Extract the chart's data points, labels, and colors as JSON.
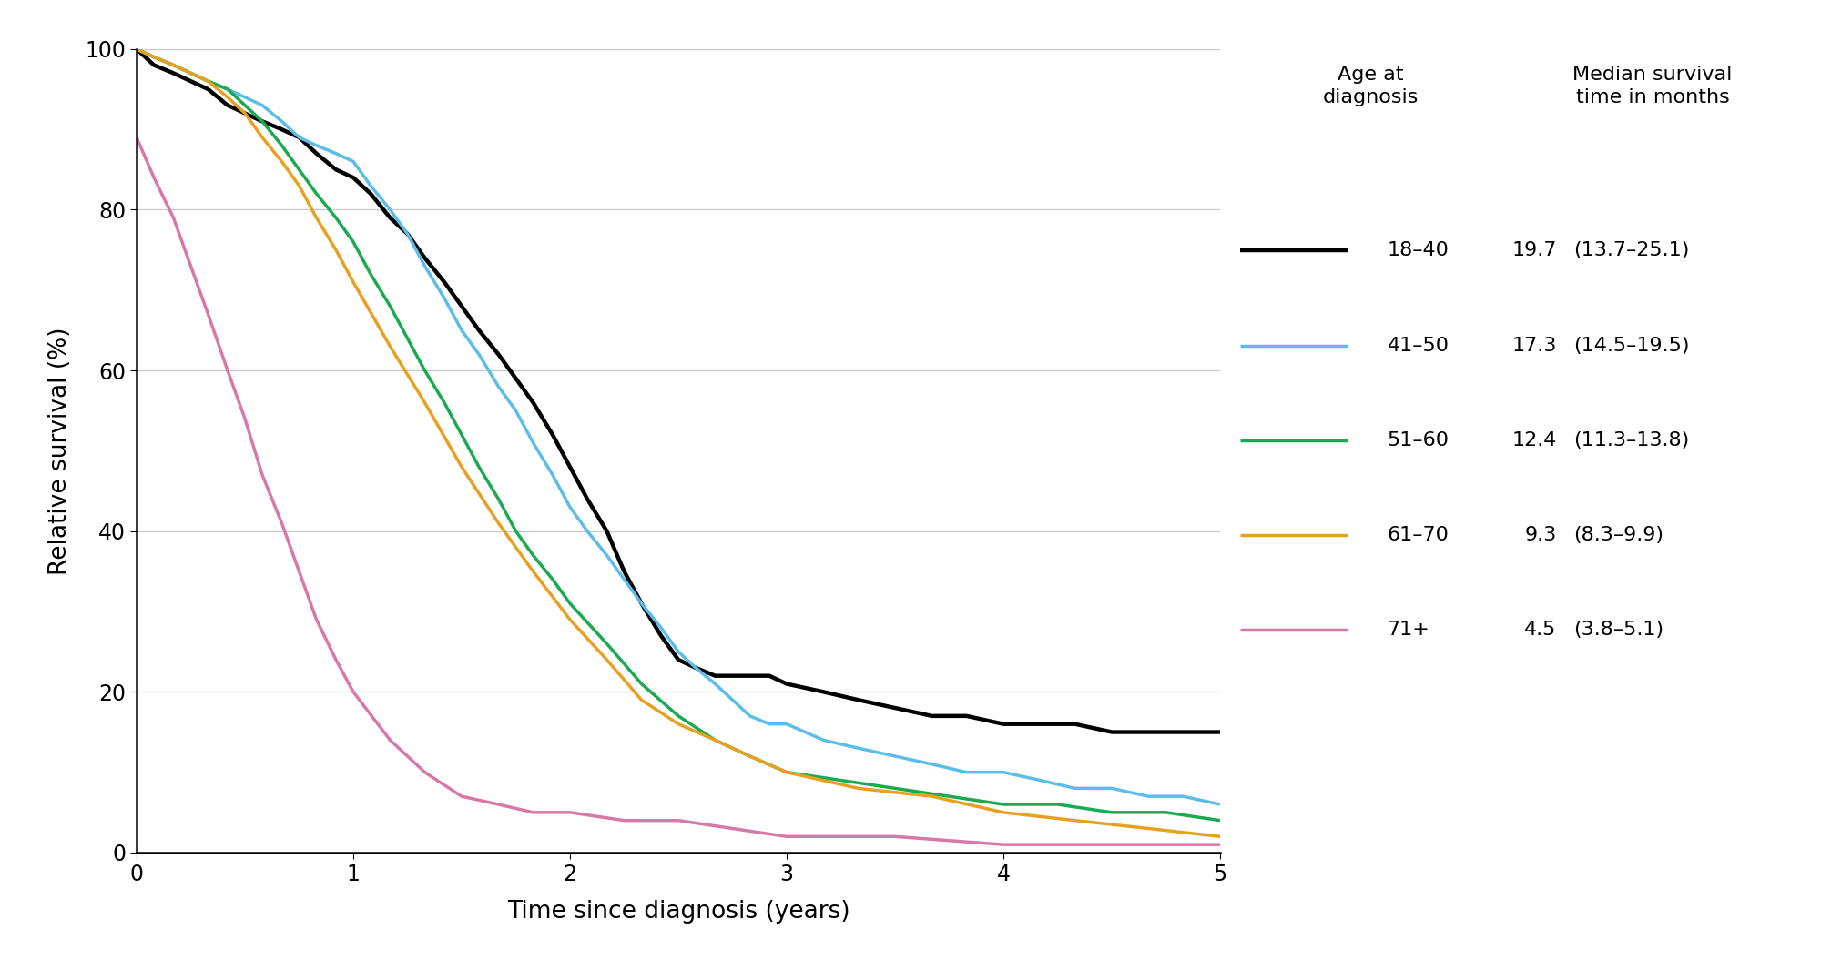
{
  "xlabel": "Time since diagnosis (years)",
  "ylabel": "Relative survival (%)",
  "xlim": [
    0,
    5
  ],
  "ylim": [
    0,
    100
  ],
  "xticks": [
    0,
    1,
    2,
    3,
    4,
    5
  ],
  "yticks": [
    0,
    20,
    40,
    60,
    80,
    100
  ],
  "background_color": "#ffffff",
  "series": [
    {
      "label": "18–40",
      "color": "#000000",
      "linewidth": 3.2,
      "median": "19.7",
      "ci": "(13.7–25.1)",
      "x": [
        0,
        0.08,
        0.17,
        0.25,
        0.33,
        0.42,
        0.5,
        0.58,
        0.67,
        0.75,
        0.83,
        0.92,
        1.0,
        1.08,
        1.17,
        1.25,
        1.33,
        1.42,
        1.5,
        1.58,
        1.67,
        1.75,
        1.83,
        1.92,
        2.0,
        2.08,
        2.17,
        2.25,
        2.33,
        2.42,
        2.5,
        2.58,
        2.67,
        2.75,
        2.83,
        2.92,
        3.0,
        3.17,
        3.33,
        3.5,
        3.67,
        3.83,
        4.0,
        4.17,
        4.33,
        4.5,
        4.67,
        4.83,
        5.0
      ],
      "y": [
        100,
        98,
        97,
        96,
        95,
        93,
        92,
        91,
        90,
        89,
        87,
        85,
        84,
        82,
        79,
        77,
        74,
        71,
        68,
        65,
        62,
        59,
        56,
        52,
        48,
        44,
        40,
        35,
        31,
        27,
        24,
        23,
        22,
        22,
        22,
        22,
        21,
        20,
        19,
        18,
        17,
        17,
        16,
        16,
        16,
        15,
        15,
        15,
        15
      ]
    },
    {
      "label": "41–50",
      "color": "#5bbde8",
      "linewidth": 2.5,
      "median": "17.3",
      "ci": "(14.5–19.5)",
      "x": [
        0,
        0.08,
        0.17,
        0.25,
        0.33,
        0.42,
        0.5,
        0.58,
        0.67,
        0.75,
        0.83,
        0.92,
        1.0,
        1.08,
        1.17,
        1.25,
        1.33,
        1.42,
        1.5,
        1.58,
        1.67,
        1.75,
        1.83,
        1.92,
        2.0,
        2.08,
        2.17,
        2.25,
        2.33,
        2.42,
        2.5,
        2.58,
        2.67,
        2.75,
        2.83,
        2.92,
        3.0,
        3.17,
        3.33,
        3.5,
        3.67,
        3.83,
        4.0,
        4.17,
        4.33,
        4.5,
        4.67,
        4.83,
        5.0
      ],
      "y": [
        100,
        99,
        98,
        97,
        96,
        95,
        94,
        93,
        91,
        89,
        88,
        87,
        86,
        83,
        80,
        77,
        73,
        69,
        65,
        62,
        58,
        55,
        51,
        47,
        43,
        40,
        37,
        34,
        31,
        28,
        25,
        23,
        21,
        19,
        17,
        16,
        16,
        14,
        13,
        12,
        11,
        10,
        10,
        9,
        8,
        8,
        7,
        7,
        6
      ]
    },
    {
      "label": "51–60",
      "color": "#1aaa50",
      "linewidth": 2.5,
      "median": "12.4",
      "ci": "(11.3–13.8)",
      "x": [
        0,
        0.08,
        0.17,
        0.25,
        0.33,
        0.42,
        0.5,
        0.58,
        0.67,
        0.75,
        0.83,
        0.92,
        1.0,
        1.08,
        1.17,
        1.25,
        1.33,
        1.42,
        1.5,
        1.58,
        1.67,
        1.75,
        1.83,
        1.92,
        2.0,
        2.17,
        2.33,
        2.5,
        2.67,
        2.83,
        3.0,
        3.25,
        3.5,
        3.75,
        4.0,
        4.25,
        4.5,
        4.75,
        5.0
      ],
      "y": [
        100,
        99,
        98,
        97,
        96,
        95,
        93,
        91,
        88,
        85,
        82,
        79,
        76,
        72,
        68,
        64,
        60,
        56,
        52,
        48,
        44,
        40,
        37,
        34,
        31,
        26,
        21,
        17,
        14,
        12,
        10,
        9,
        8,
        7,
        6,
        6,
        5,
        5,
        4
      ]
    },
    {
      "label": "61–70",
      "color": "#e8a020",
      "linewidth": 2.5,
      "median": "9.3",
      "ci": "(8.3–9.9)",
      "x": [
        0,
        0.08,
        0.17,
        0.25,
        0.33,
        0.42,
        0.5,
        0.58,
        0.67,
        0.75,
        0.83,
        0.92,
        1.0,
        1.17,
        1.33,
        1.5,
        1.67,
        1.83,
        2.0,
        2.17,
        2.33,
        2.5,
        2.67,
        2.83,
        3.0,
        3.33,
        3.67,
        4.0,
        4.33,
        4.67,
        5.0
      ],
      "y": [
        100,
        99,
        98,
        97,
        96,
        94,
        92,
        89,
        86,
        83,
        79,
        75,
        71,
        63,
        56,
        48,
        41,
        35,
        29,
        24,
        19,
        16,
        14,
        12,
        10,
        8,
        7,
        5,
        4,
        3,
        2
      ]
    },
    {
      "label": "71+",
      "color": "#d878a8",
      "linewidth": 2.5,
      "median": "4.5",
      "ci": "(3.8–5.1)",
      "x": [
        0,
        0.08,
        0.17,
        0.25,
        0.33,
        0.42,
        0.5,
        0.58,
        0.67,
        0.75,
        0.83,
        0.92,
        1.0,
        1.17,
        1.33,
        1.5,
        1.67,
        1.83,
        2.0,
        2.25,
        2.5,
        2.75,
        3.0,
        3.5,
        4.0,
        4.5,
        5.0
      ],
      "y": [
        89,
        84,
        79,
        73,
        67,
        60,
        54,
        47,
        41,
        35,
        29,
        24,
        20,
        14,
        10,
        7,
        6,
        5,
        5,
        4,
        4,
        3,
        2,
        2,
        1,
        1,
        1
      ]
    }
  ]
}
